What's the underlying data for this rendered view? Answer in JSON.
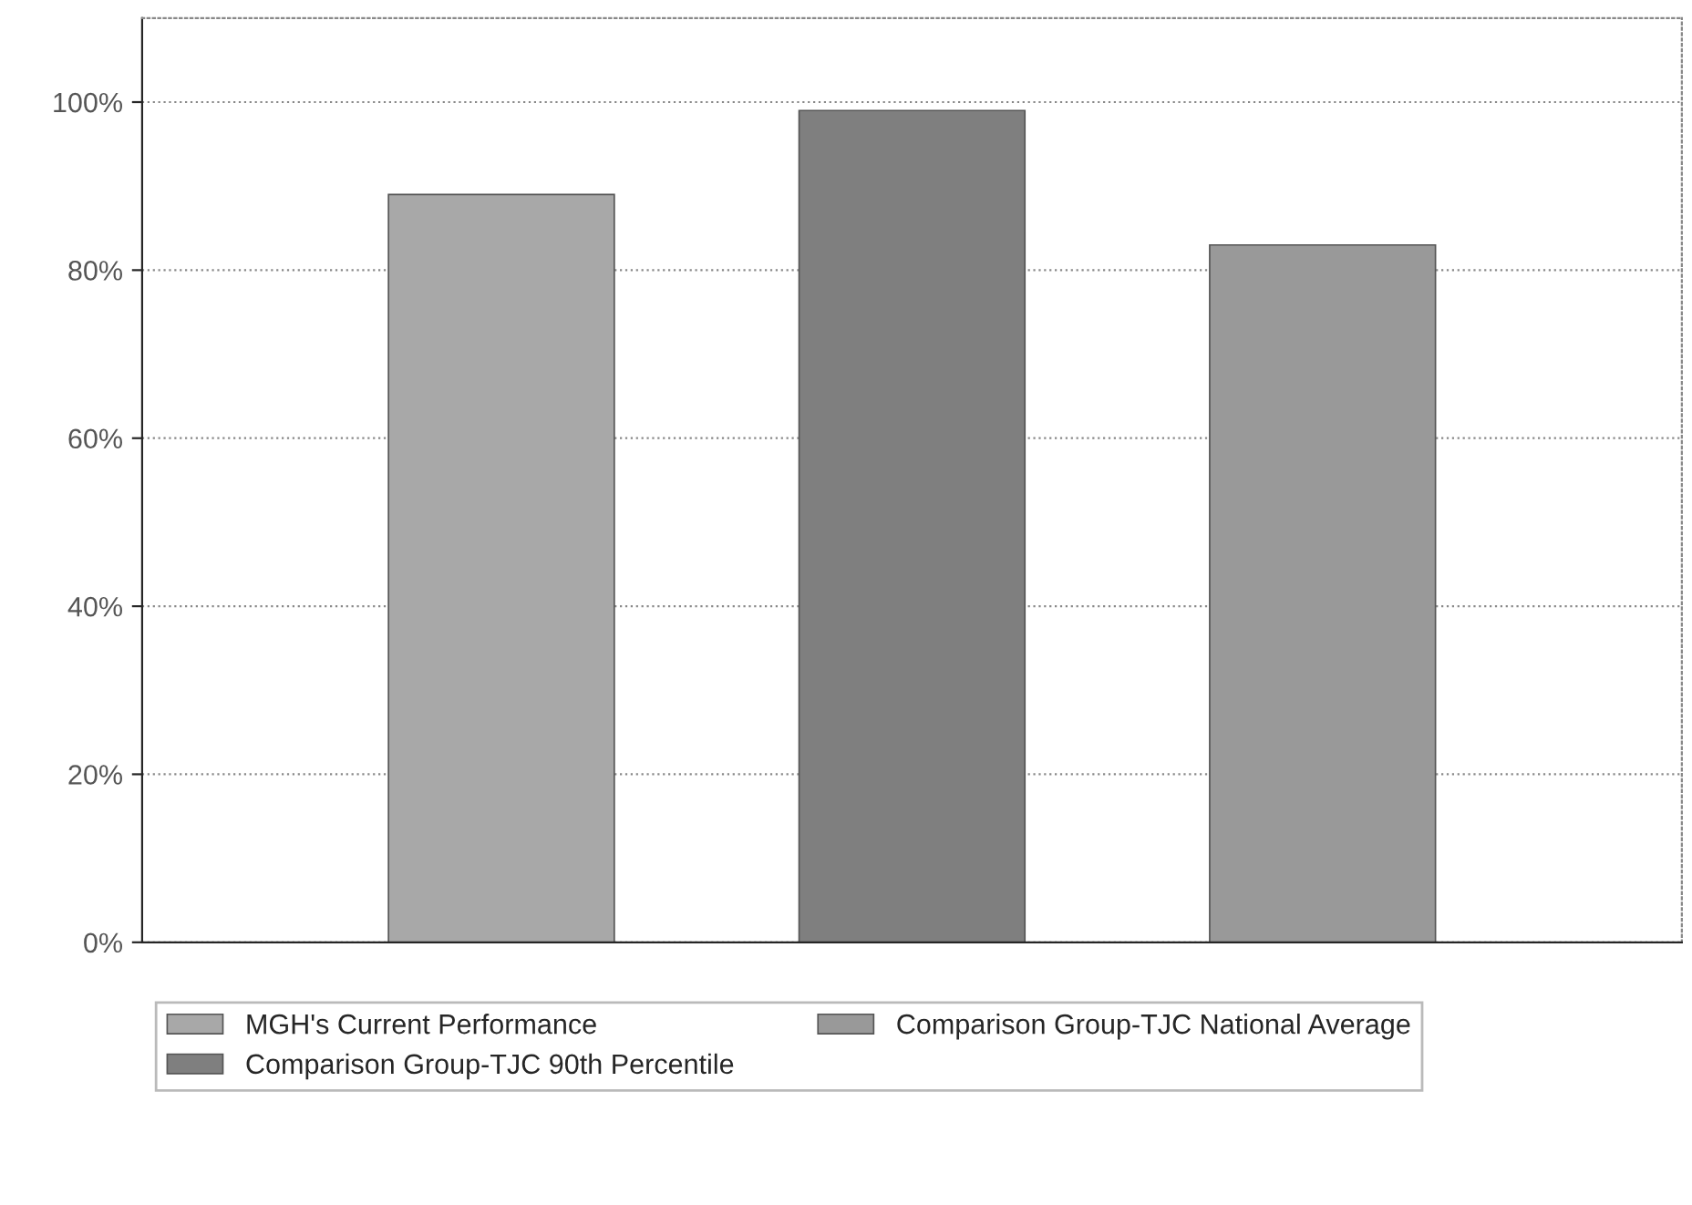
{
  "chart_data": {
    "type": "bar",
    "categories": [
      null
    ],
    "series": [
      {
        "name": "MGH's Current Performance",
        "color": "#a8a8a8",
        "values": [
          89
        ]
      },
      {
        "name": "Comparison Group-TJC 90th Percentile",
        "color": "#7f7f7f",
        "values": [
          99
        ]
      },
      {
        "name": "Comparison Group-TJC National Average",
        "color": "#999999",
        "values": [
          83
        ]
      }
    ],
    "ylim": [
      0,
      110
    ],
    "yticks": [
      {
        "value": 0,
        "label": "0%"
      },
      {
        "value": 20,
        "label": "20%"
      },
      {
        "value": 40,
        "label": "40%"
      },
      {
        "value": 60,
        "label": "60%"
      },
      {
        "value": 80,
        "label": "80%"
      },
      {
        "value": 100,
        "label": "100%"
      }
    ],
    "grid": "y",
    "legend": "bottom"
  }
}
